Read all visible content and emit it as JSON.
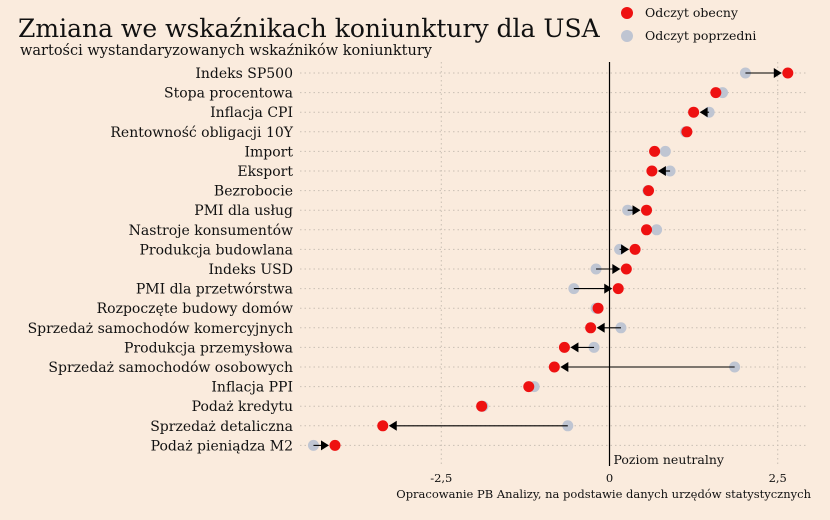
{
  "chart_data": {
    "type": "dumbbell",
    "title": "Zmiana we wskaźnikach koniunktury dla USA",
    "subtitle": "wartości wystandaryzowanych wskaźników koniunktury",
    "source": "Opracowanie PB Analizy, na podstawie danych urzędów statystycznych",
    "neutral_label": "Poziom neutralny",
    "legend_position": "top-right",
    "xlim": [
      -4.6,
      2.95
    ],
    "x_ticks": [
      {
        "value": -2.5,
        "label": "-2,5"
      },
      {
        "value": 0,
        "label": "0"
      },
      {
        "value": 2.5,
        "label": "2,5"
      }
    ],
    "series": [
      {
        "name": "Odczyt obecny",
        "color": "#EE1111"
      },
      {
        "name": "Odczyt poprzedni",
        "color": "#BFC5D2"
      }
    ],
    "categories": [
      {
        "label": "Indeks SP500",
        "current": 2.65,
        "previous": 2.02
      },
      {
        "label": "Stopa procentowa",
        "current": 1.58,
        "previous": 1.68
      },
      {
        "label": "Inflacja CPI",
        "current": 1.25,
        "previous": 1.48
      },
      {
        "label": "Rentowność obligacji 10Y",
        "current": 1.15,
        "previous": 1.13
      },
      {
        "label": "Import",
        "current": 0.67,
        "previous": 0.83
      },
      {
        "label": "Eksport",
        "current": 0.63,
        "previous": 0.9
      },
      {
        "label": "Bezrobocie",
        "current": 0.58,
        "previous": 0.57
      },
      {
        "label": "PMI dla usług",
        "current": 0.55,
        "previous": 0.27
      },
      {
        "label": "Nastroje konsumentów",
        "current": 0.55,
        "previous": 0.7
      },
      {
        "label": "Produkcja budowlana",
        "current": 0.38,
        "previous": 0.15
      },
      {
        "label": "Indeks USD",
        "current": 0.25,
        "previous": -0.2
      },
      {
        "label": "PMI dla przetwórstwa",
        "current": 0.13,
        "previous": -0.53
      },
      {
        "label": "Rozpoczęte budowy domów",
        "current": -0.17,
        "previous": -0.2
      },
      {
        "label": "Sprzedaż samochodów komercyjnych",
        "current": -0.28,
        "previous": 0.17
      },
      {
        "label": "Produkcja przemysłowa",
        "current": -0.67,
        "previous": -0.23
      },
      {
        "label": "Sprzedaż samochodów osobowych",
        "current": -0.82,
        "previous": 1.86
      },
      {
        "label": "Inflacja PPI",
        "current": -1.2,
        "previous": -1.12
      },
      {
        "label": "Podaż kredytu",
        "current": -1.9,
        "previous": -1.88
      },
      {
        "label": "Sprzedaż detaliczna",
        "current": -3.37,
        "previous": -0.62
      },
      {
        "label": "Podaż pieniądza M2",
        "current": -4.08,
        "previous": -4.4
      }
    ]
  }
}
